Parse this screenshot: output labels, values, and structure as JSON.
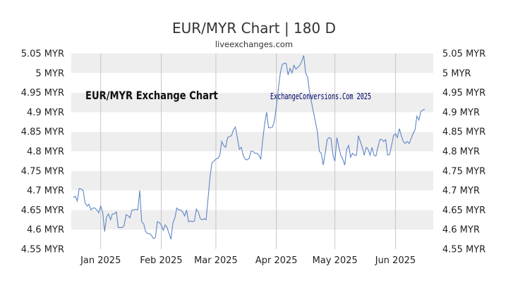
{
  "chart_data": {
    "type": "line",
    "title": "EUR/MYR Chart | 180 D",
    "subtitle": "liveexchanges.com",
    "annotations": [
      "EUR/MYR Exchange Chart",
      "ExchangeConversions.Com 2025"
    ],
    "ylim": [
      4.55,
      5.05
    ],
    "y_ticks": [
      {
        "value": 5.05,
        "label": "5.05 MYR"
      },
      {
        "value": 5.0,
        "label": "5 MYR"
      },
      {
        "value": 4.95,
        "label": "4.95 MYR"
      },
      {
        "value": 4.9,
        "label": "4.9 MYR"
      },
      {
        "value": 4.85,
        "label": "4.85 MYR"
      },
      {
        "value": 4.8,
        "label": "4.8 MYR"
      },
      {
        "value": 4.75,
        "label": "4.75 MYR"
      },
      {
        "value": 4.7,
        "label": "4.7 MYR"
      },
      {
        "value": 4.65,
        "label": "4.65 MYR"
      },
      {
        "value": 4.6,
        "label": "4.6 MYR"
      },
      {
        "value": 4.55,
        "label": "4.55 MYR"
      }
    ],
    "x_start": "2024-12-18",
    "x_end": "2025-06-16",
    "x_ticks": [
      {
        "date": "2025-01-01",
        "label": "Jan 2025"
      },
      {
        "date": "2025-02-01",
        "label": "Feb 2025"
      },
      {
        "date": "2025-03-01",
        "label": "Mar 2025"
      },
      {
        "date": "2025-04-01",
        "label": "Apr 2025"
      },
      {
        "date": "2025-05-01",
        "label": "May 2025"
      },
      {
        "date": "2025-06-01",
        "label": "Jun 2025"
      }
    ],
    "grid": true,
    "colors": {
      "line": "#5f85c6",
      "band": "#eeeeee",
      "grid": "#bbbbbb",
      "title": "#333333",
      "wm1": "#111111",
      "wm2": "#000066"
    },
    "series": [
      {
        "points": [
          [
            "2024-12-18",
            4.682
          ],
          [
            "2024-12-19",
            4.685
          ],
          [
            "2024-12-20",
            4.673
          ],
          [
            "2024-12-21",
            4.705
          ],
          [
            "2024-12-22",
            4.703
          ],
          [
            "2024-12-23",
            4.7
          ],
          [
            "2024-12-24",
            4.668
          ],
          [
            "2024-12-25",
            4.66
          ],
          [
            "2024-12-26",
            4.665
          ],
          [
            "2024-12-27",
            4.65
          ],
          [
            "2024-12-28",
            4.655
          ],
          [
            "2024-12-29",
            4.655
          ],
          [
            "2024-12-30",
            4.65
          ],
          [
            "2024-12-31",
            4.643
          ],
          [
            "2025-01-01",
            4.66
          ],
          [
            "2025-01-02",
            4.645
          ],
          [
            "2025-01-03",
            4.595
          ],
          [
            "2025-01-04",
            4.632
          ],
          [
            "2025-01-05",
            4.64
          ],
          [
            "2025-01-06",
            4.625
          ],
          [
            "2025-01-07",
            4.64
          ],
          [
            "2025-01-08",
            4.64
          ],
          [
            "2025-01-09",
            4.645
          ],
          [
            "2025-01-10",
            4.605
          ],
          [
            "2025-01-11",
            4.605
          ],
          [
            "2025-01-12",
            4.605
          ],
          [
            "2025-01-13",
            4.61
          ],
          [
            "2025-01-14",
            4.638
          ],
          [
            "2025-01-15",
            4.635
          ],
          [
            "2025-01-16",
            4.63
          ],
          [
            "2025-01-17",
            4.65
          ],
          [
            "2025-01-18",
            4.65
          ],
          [
            "2025-01-19",
            4.652
          ],
          [
            "2025-01-20",
            4.65
          ],
          [
            "2025-01-21",
            4.7
          ],
          [
            "2025-01-22",
            4.62
          ],
          [
            "2025-01-23",
            4.615
          ],
          [
            "2025-01-24",
            4.595
          ],
          [
            "2025-01-25",
            4.59
          ],
          [
            "2025-01-26",
            4.59
          ],
          [
            "2025-01-27",
            4.585
          ],
          [
            "2025-01-28",
            4.577
          ],
          [
            "2025-01-29",
            4.58
          ],
          [
            "2025-01-30",
            4.62
          ],
          [
            "2025-01-31",
            4.618
          ],
          [
            "2025-02-01",
            4.612
          ],
          [
            "2025-02-02",
            4.598
          ],
          [
            "2025-02-03",
            4.612
          ],
          [
            "2025-02-04",
            4.605
          ],
          [
            "2025-02-05",
            4.59
          ],
          [
            "2025-02-06",
            4.575
          ],
          [
            "2025-02-07",
            4.617
          ],
          [
            "2025-02-08",
            4.63
          ],
          [
            "2025-02-09",
            4.655
          ],
          [
            "2025-02-10",
            4.65
          ],
          [
            "2025-02-11",
            4.65
          ],
          [
            "2025-02-12",
            4.645
          ],
          [
            "2025-02-13",
            4.635
          ],
          [
            "2025-02-14",
            4.65
          ],
          [
            "2025-02-15",
            4.62
          ],
          [
            "2025-02-16",
            4.622
          ],
          [
            "2025-02-17",
            4.62
          ],
          [
            "2025-02-18",
            4.622
          ],
          [
            "2025-02-19",
            4.652
          ],
          [
            "2025-02-20",
            4.645
          ],
          [
            "2025-02-21",
            4.628
          ],
          [
            "2025-02-22",
            4.625
          ],
          [
            "2025-02-23",
            4.628
          ],
          [
            "2025-02-24",
            4.625
          ],
          [
            "2025-02-25",
            4.68
          ],
          [
            "2025-02-26",
            4.735
          ],
          [
            "2025-02-27",
            4.77
          ],
          [
            "2025-02-28",
            4.775
          ],
          [
            "2025-03-01",
            4.78
          ],
          [
            "2025-03-02",
            4.782
          ],
          [
            "2025-03-03",
            4.79
          ],
          [
            "2025-03-04",
            4.825
          ],
          [
            "2025-03-05",
            4.815
          ],
          [
            "2025-03-06",
            4.81
          ],
          [
            "2025-03-07",
            4.835
          ],
          [
            "2025-03-08",
            4.838
          ],
          [
            "2025-03-09",
            4.84
          ],
          [
            "2025-03-10",
            4.855
          ],
          [
            "2025-03-11",
            4.862
          ],
          [
            "2025-03-12",
            4.835
          ],
          [
            "2025-03-13",
            4.805
          ],
          [
            "2025-03-14",
            4.81
          ],
          [
            "2025-03-15",
            4.79
          ],
          [
            "2025-03-16",
            4.78
          ],
          [
            "2025-03-17",
            4.778
          ],
          [
            "2025-03-18",
            4.782
          ],
          [
            "2025-03-19",
            4.8
          ],
          [
            "2025-03-20",
            4.8
          ],
          [
            "2025-03-21",
            4.795
          ],
          [
            "2025-03-22",
            4.795
          ],
          [
            "2025-03-23",
            4.79
          ],
          [
            "2025-03-24",
            4.78
          ],
          [
            "2025-03-25",
            4.83
          ],
          [
            "2025-03-26",
            4.87
          ],
          [
            "2025-03-27",
            4.9
          ],
          [
            "2025-03-28",
            4.86
          ],
          [
            "2025-03-29",
            4.86
          ],
          [
            "2025-03-30",
            4.862
          ],
          [
            "2025-03-31",
            4.878
          ],
          [
            "2025-04-01",
            4.915
          ],
          [
            "2025-04-02",
            4.96
          ],
          [
            "2025-04-03",
            5.0
          ],
          [
            "2025-04-04",
            5.022
          ],
          [
            "2025-04-05",
            5.025
          ],
          [
            "2025-04-06",
            5.025
          ],
          [
            "2025-04-07",
            4.995
          ],
          [
            "2025-04-08",
            5.012
          ],
          [
            "2025-04-09",
            5.0
          ],
          [
            "2025-04-10",
            5.02
          ],
          [
            "2025-04-11",
            5.01
          ],
          [
            "2025-04-12",
            5.015
          ],
          [
            "2025-04-13",
            5.02
          ],
          [
            "2025-04-14",
            5.03
          ],
          [
            "2025-04-15",
            5.045
          ],
          [
            "2025-04-16",
            5.0
          ],
          [
            "2025-04-17",
            4.99
          ],
          [
            "2025-04-18",
            4.95
          ],
          [
            "2025-04-19",
            4.925
          ],
          [
            "2025-04-20",
            4.9
          ],
          [
            "2025-04-21",
            4.875
          ],
          [
            "2025-04-22",
            4.85
          ],
          [
            "2025-04-23",
            4.8
          ],
          [
            "2025-04-24",
            4.795
          ],
          [
            "2025-04-25",
            4.765
          ],
          [
            "2025-04-26",
            4.795
          ],
          [
            "2025-04-27",
            4.83
          ],
          [
            "2025-04-28",
            4.835
          ],
          [
            "2025-04-29",
            4.832
          ],
          [
            "2025-04-30",
            4.79
          ],
          [
            "2025-05-01",
            4.775
          ],
          [
            "2025-05-02",
            4.835
          ],
          [
            "2025-05-03",
            4.81
          ],
          [
            "2025-05-04",
            4.79
          ],
          [
            "2025-05-05",
            4.78
          ],
          [
            "2025-05-06",
            4.765
          ],
          [
            "2025-05-07",
            4.805
          ],
          [
            "2025-05-08",
            4.815
          ],
          [
            "2025-05-09",
            4.785
          ],
          [
            "2025-05-10",
            4.795
          ],
          [
            "2025-05-11",
            4.79
          ],
          [
            "2025-05-12",
            4.79
          ],
          [
            "2025-05-13",
            4.84
          ],
          [
            "2025-05-14",
            4.825
          ],
          [
            "2025-05-15",
            4.81
          ],
          [
            "2025-05-16",
            4.79
          ],
          [
            "2025-05-17",
            4.81
          ],
          [
            "2025-05-18",
            4.805
          ],
          [
            "2025-05-19",
            4.79
          ],
          [
            "2025-05-20",
            4.81
          ],
          [
            "2025-05-21",
            4.79
          ],
          [
            "2025-05-22",
            4.788
          ],
          [
            "2025-05-23",
            4.81
          ],
          [
            "2025-05-24",
            4.83
          ],
          [
            "2025-05-25",
            4.83
          ],
          [
            "2025-05-26",
            4.825
          ],
          [
            "2025-05-27",
            4.83
          ],
          [
            "2025-05-28",
            4.79
          ],
          [
            "2025-05-29",
            4.792
          ],
          [
            "2025-05-30",
            4.815
          ],
          [
            "2025-05-31",
            4.84
          ],
          [
            "2025-06-01",
            4.845
          ],
          [
            "2025-06-02",
            4.835
          ],
          [
            "2025-06-03",
            4.858
          ],
          [
            "2025-06-04",
            4.84
          ],
          [
            "2025-06-05",
            4.825
          ],
          [
            "2025-06-06",
            4.82
          ],
          [
            "2025-06-07",
            4.825
          ],
          [
            "2025-06-08",
            4.82
          ],
          [
            "2025-06-09",
            4.832
          ],
          [
            "2025-06-10",
            4.845
          ],
          [
            "2025-06-11",
            4.855
          ],
          [
            "2025-06-12",
            4.89
          ],
          [
            "2025-06-13",
            4.88
          ],
          [
            "2025-06-14",
            4.902
          ],
          [
            "2025-06-15",
            4.905
          ],
          [
            "2025-06-16",
            4.908
          ]
        ]
      }
    ]
  }
}
